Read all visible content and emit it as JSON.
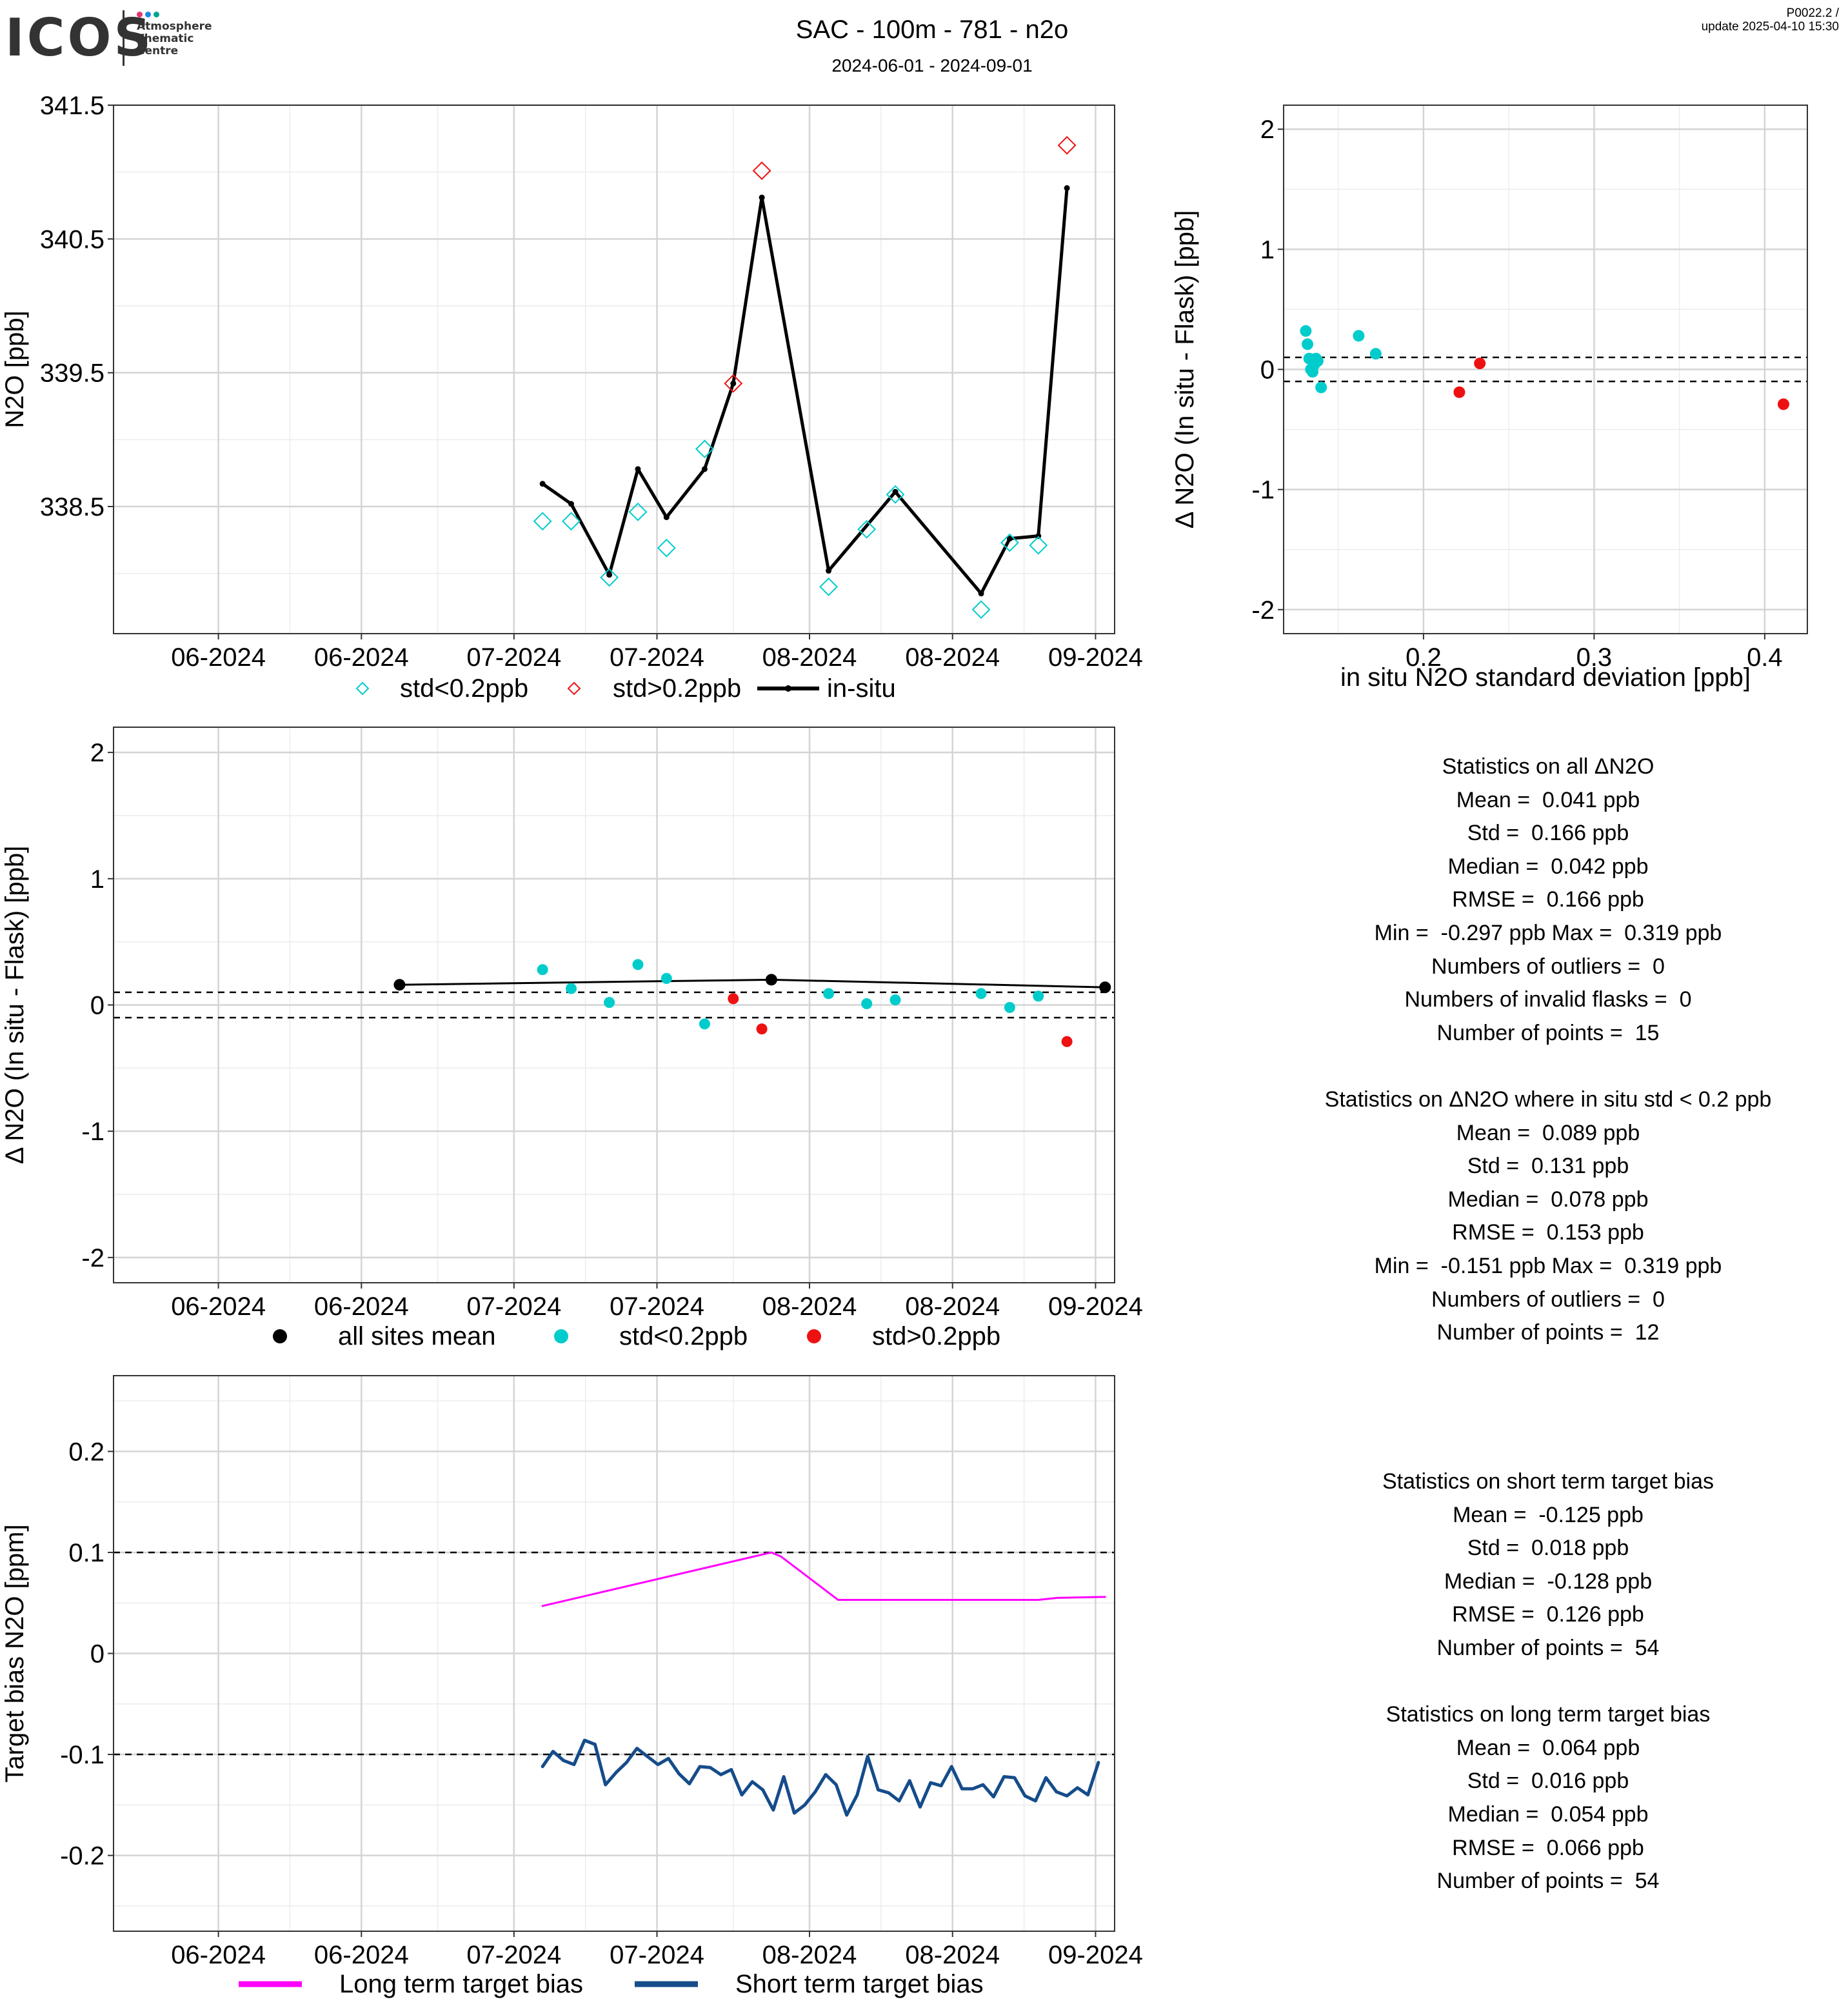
{
  "header": {
    "title": "SAC - 100m - 781 - n2o",
    "subtitle": "2024-06-01 - 2024-09-01",
    "version_line1": "P0022.2 /",
    "version_line2": "update  2025-04-10 15:30",
    "logo_text": "ICOS",
    "logo_sub": [
      "Atmosphere",
      "Thematic",
      "Centre"
    ],
    "logo_colors": [
      "#e8336d",
      "#1e88e5",
      "#00a38d"
    ]
  },
  "colors": {
    "cyan": "#00cccc",
    "red": "#ee1111",
    "black": "#000000",
    "magenta": "#ff00ff",
    "navy": "#154c8a",
    "grid_major": "#d4d4d4",
    "grid_minor": "#ececec"
  },
  "chart_data": [
    {
      "id": "timeseries",
      "type": "line",
      "ylabel": "N2O [ppb]",
      "ylim": [
        337.55,
        341.5
      ],
      "yticks": [
        338.5,
        339.5,
        340.5,
        341.5
      ],
      "xlim": [
        "2024-05-21",
        "2024-09-03"
      ],
      "xticks": [
        [
          "2024-06-01",
          "06-2024"
        ],
        [
          "2024-06-16",
          "06-2024"
        ],
        [
          "2024-07-02",
          "07-2024"
        ],
        [
          "2024-07-17",
          "07-2024"
        ],
        [
          "2024-08-02",
          "08-2024"
        ],
        [
          "2024-08-17",
          "08-2024"
        ],
        [
          "2024-09-01",
          "09-2024"
        ]
      ],
      "legend": [
        "std<0.2ppb",
        "std>0.2ppb",
        "in-situ"
      ],
      "in_situ": {
        "x": [
          "2024-07-05",
          "2024-07-08",
          "2024-07-12",
          "2024-07-15",
          "2024-07-18",
          "2024-07-22",
          "2024-07-25",
          "2024-07-28",
          "2024-08-04",
          "2024-08-11",
          "2024-08-20",
          "2024-08-23",
          "2024-08-26",
          "2024-08-29"
        ],
        "y": [
          338.67,
          338.52,
          337.99,
          338.78,
          338.42,
          338.78,
          339.42,
          340.81,
          338.02,
          338.61,
          337.85,
          338.26,
          338.28,
          340.88
        ]
      },
      "flasks_low": {
        "x": [
          "2024-07-05",
          "2024-07-08",
          "2024-07-12",
          "2024-07-15",
          "2024-07-18",
          "2024-07-22",
          "2024-08-04",
          "2024-08-08",
          "2024-08-11",
          "2024-08-20",
          "2024-08-23",
          "2024-08-26"
        ],
        "y": [
          338.39,
          338.39,
          337.97,
          338.46,
          338.19,
          338.93,
          337.9,
          338.33,
          338.59,
          337.73,
          338.23,
          338.21
        ]
      },
      "flasks_high": {
        "x": [
          "2024-07-25",
          "2024-07-28",
          "2024-08-29"
        ],
        "y": [
          339.42,
          341.01,
          341.2
        ]
      }
    },
    {
      "id": "scatter_std",
      "type": "scatter",
      "xlabel": "in situ N2O standard deviation [ppb]",
      "ylabel": "Δ N2O (In situ - Flask) [ppb]",
      "xlim": [
        0.118,
        0.425
      ],
      "ylim": [
        -2.2,
        2.2
      ],
      "xticks": [
        0.2,
        0.3,
        0.4
      ],
      "yticks": [
        -2,
        -1,
        0,
        1,
        2
      ],
      "hlines": [
        0.1,
        -0.1
      ],
      "points_low": {
        "x": [
          0.131,
          0.132,
          0.133,
          0.134,
          0.135,
          0.136,
          0.136,
          0.137,
          0.138,
          0.14,
          0.162,
          0.172
        ],
        "y": [
          0.32,
          0.21,
          0.09,
          0.0,
          -0.02,
          0.08,
          0.04,
          0.09,
          0.07,
          -0.15,
          0.28,
          0.13
        ]
      },
      "points_high": {
        "x": [
          0.221,
          0.233,
          0.411
        ],
        "y": [
          -0.19,
          0.05,
          -0.29
        ]
      }
    },
    {
      "id": "delta_timeseries",
      "type": "scatter",
      "ylabel": "Δ N2O (In situ - Flask) [ppb]",
      "ylim": [
        -2.2,
        2.2
      ],
      "yticks": [
        -2,
        -1,
        0,
        1,
        2
      ],
      "xlim": [
        "2024-05-21",
        "2024-09-03"
      ],
      "xticks": [
        [
          "2024-06-01",
          "06-2024"
        ],
        [
          "2024-06-16",
          "06-2024"
        ],
        [
          "2024-07-02",
          "07-2024"
        ],
        [
          "2024-07-17",
          "07-2024"
        ],
        [
          "2024-08-02",
          "08-2024"
        ],
        [
          "2024-08-17",
          "08-2024"
        ],
        [
          "2024-09-01",
          "09-2024"
        ]
      ],
      "hlines": [
        0.1,
        -0.1
      ],
      "legend": [
        "all sites mean",
        "std<0.2ppb",
        "std>0.2ppb"
      ],
      "sites_mean": {
        "x": [
          "2024-06-20",
          "2024-07-29",
          "2024-09-02"
        ],
        "y": [
          0.16,
          0.2,
          0.14
        ]
      },
      "points_low": {
        "x": [
          "2024-07-05",
          "2024-07-08",
          "2024-07-12",
          "2024-07-15",
          "2024-07-18",
          "2024-07-22",
          "2024-08-04",
          "2024-08-08",
          "2024-08-11",
          "2024-08-20",
          "2024-08-23",
          "2024-08-26"
        ],
        "y": [
          0.28,
          0.13,
          0.02,
          0.32,
          0.21,
          -0.15,
          0.09,
          0.01,
          0.04,
          0.09,
          -0.02,
          0.07
        ]
      },
      "points_high": {
        "x": [
          "2024-07-25",
          "2024-07-28",
          "2024-08-29"
        ],
        "y": [
          0.05,
          -0.19,
          -0.29
        ]
      }
    },
    {
      "id": "target_bias",
      "type": "line",
      "ylabel": "Target bias N2O [ppm]",
      "ylim": [
        -0.275,
        0.275
      ],
      "yticks": [
        -0.2,
        -0.1,
        0.0,
        0.1,
        0.2
      ],
      "xlim": [
        "2024-05-21",
        "2024-09-03"
      ],
      "xticks": [
        [
          "2024-06-01",
          "06-2024"
        ],
        [
          "2024-06-16",
          "06-2024"
        ],
        [
          "2024-07-02",
          "07-2024"
        ],
        [
          "2024-07-17",
          "07-2024"
        ],
        [
          "2024-08-02",
          "08-2024"
        ],
        [
          "2024-08-17",
          "08-2024"
        ],
        [
          "2024-09-01",
          "09-2024"
        ]
      ],
      "hlines": [
        0.1,
        -0.1
      ],
      "legend": [
        "Long term target bias",
        "Short term target bias"
      ],
      "long_term": {
        "x": [
          "2024-07-05",
          "2024-07-29",
          "2024-07-30",
          "2024-08-05",
          "2024-08-26",
          "2024-08-28",
          "2024-09-02"
        ],
        "y": [
          0.047,
          0.1,
          0.096,
          0.053,
          0.053,
          0.055,
          0.056
        ]
      },
      "short_term": {
        "x_start": "2024-07-05",
        "x_step_days": 1.1,
        "y": [
          -0.112,
          -0.097,
          -0.106,
          -0.11,
          -0.086,
          -0.09,
          -0.13,
          -0.118,
          -0.108,
          -0.094,
          -0.102,
          -0.11,
          -0.104,
          -0.119,
          -0.129,
          -0.112,
          -0.113,
          -0.12,
          -0.115,
          -0.14,
          -0.127,
          -0.135,
          -0.155,
          -0.122,
          -0.158,
          -0.15,
          -0.137,
          -0.12,
          -0.13,
          -0.16,
          -0.14,
          -0.102,
          -0.135,
          -0.138,
          -0.146,
          -0.126,
          -0.152,
          -0.128,
          -0.131,
          -0.112,
          -0.134,
          -0.134,
          -0.13,
          -0.142,
          -0.122,
          -0.123,
          -0.141,
          -0.146,
          -0.123,
          -0.137,
          -0.141,
          -0.133,
          -0.14,
          -0.108
        ]
      }
    }
  ],
  "stats": {
    "block1": [
      "Statistics on all ΔN2O",
      "Mean =  0.041 ppb",
      "Std =  0.166 ppb",
      "Median =  0.042 ppb",
      "RMSE =  0.166 ppb",
      "Min =  -0.297 ppb Max =  0.319 ppb",
      "Numbers of outliers =  0",
      "Numbers of invalid flasks =  0",
      "Number of points =  15",
      "",
      "Statistics on ΔN2O where in situ std < 0.2 ppb",
      "Mean =  0.089 ppb",
      "Std =  0.131 ppb",
      "Median =  0.078 ppb",
      "RMSE =  0.153 ppb",
      "Min =  -0.151 ppb Max =  0.319 ppb",
      "Numbers of outliers =  0",
      "Number of points =  12"
    ],
    "block2": [
      "Statistics on short term target bias",
      "Mean =  -0.125 ppb",
      "Std =  0.018 ppb",
      "Median =  -0.128 ppb",
      "RMSE =  0.126 ppb",
      "Number of points =  54",
      "",
      "Statistics on long term target bias",
      "Mean =  0.064 ppb",
      "Std =  0.016 ppb",
      "Median =  0.054 ppb",
      "RMSE =  0.066 ppb",
      "Number of points =  54"
    ]
  }
}
